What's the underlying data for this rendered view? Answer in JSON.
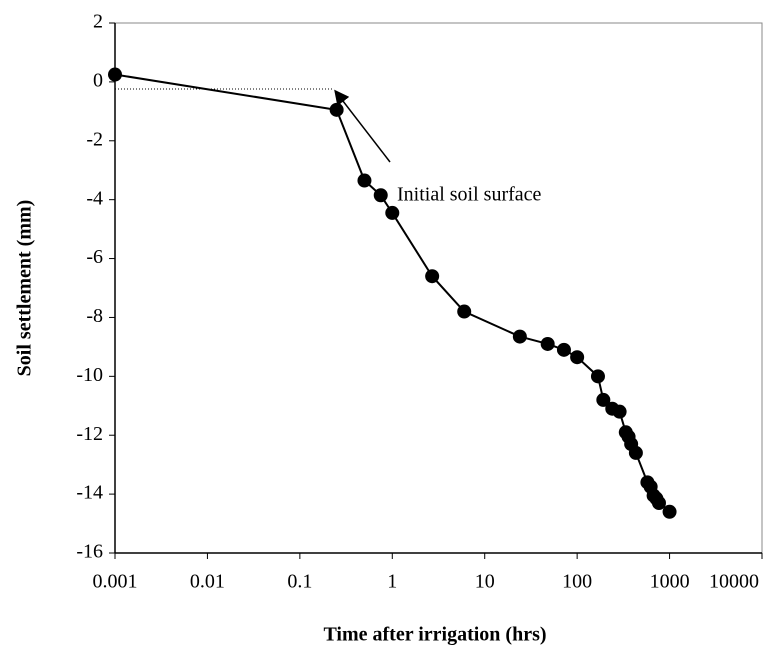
{
  "chart_data": {
    "type": "scatter",
    "log_x": true,
    "x_label": "Time after irrigation (hrs)",
    "y_label": "Soil settlement (mm)",
    "annotation": "Initial soil surface",
    "x": [
      0.001,
      0.25,
      0.5,
      0.75,
      1,
      2.7,
      6,
      24,
      48,
      72,
      100,
      168,
      192,
      240,
      288,
      336,
      360,
      384,
      432,
      576,
      624,
      672,
      720,
      768,
      1000
    ],
    "values": [
      0.25,
      -0.95,
      -3.35,
      -3.85,
      -4.45,
      -6.6,
      -7.8,
      -8.65,
      -8.9,
      -9.1,
      -9.35,
      -10.0,
      -10.8,
      -11.1,
      -11.2,
      -11.9,
      -12.05,
      -12.3,
      -12.6,
      -13.6,
      -13.75,
      -14.05,
      -14.15,
      -14.3,
      -14.6
    ],
    "color": "#000000",
    "xlim": [
      0.001,
      10000
    ],
    "xticks": [
      0.001,
      0.01,
      0.1,
      1,
      10,
      100,
      1000,
      10000
    ],
    "ylim": [
      -16,
      2
    ],
    "yticks": [
      2,
      0,
      -2,
      -4,
      -6,
      -8,
      -10,
      -12,
      -14,
      -16
    ]
  }
}
